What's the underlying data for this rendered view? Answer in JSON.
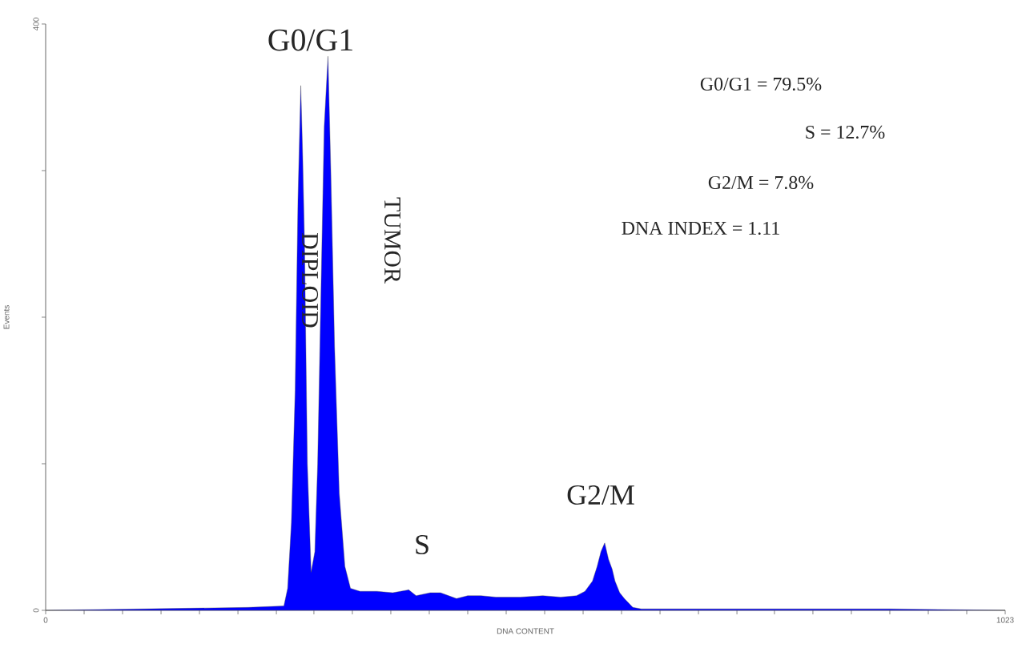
{
  "chart_data": {
    "type": "area",
    "xlabel": "DNA CONTENT",
    "ylabel": "Events",
    "x": [
      0,
      216,
      254,
      258,
      262,
      266,
      269,
      272,
      274,
      276,
      279,
      283,
      287,
      290,
      293,
      297,
      301,
      304,
      308,
      313,
      319,
      325,
      335,
      353,
      370,
      387,
      395,
      410,
      421,
      438,
      450,
      464,
      480,
      506,
      530,
      549,
      566,
      575,
      583,
      588,
      592,
      596,
      600,
      604,
      607,
      612,
      617,
      626,
      635,
      700,
      800,
      900,
      1023
    ],
    "series": [
      {
        "color": "#0000ff",
        "values": [
          0,
          2,
          3,
          15,
          60,
          150,
          280,
          358,
          310,
          250,
          100,
          26,
          40,
          100,
          200,
          330,
          378,
          300,
          180,
          80,
          30,
          15,
          13,
          13,
          12,
          14,
          10,
          12,
          12,
          8,
          10,
          10,
          9,
          9,
          10,
          9,
          10,
          13,
          20,
          30,
          40,
          46,
          35,
          28,
          20,
          12,
          8,
          2,
          1,
          1,
          1,
          1,
          0
        ]
      }
    ],
    "xlim": [
      0,
      1023
    ],
    "ylim": [
      0,
      400
    ],
    "xticks": [
      0,
      {
        "value": 41,
        "label": null
      },
      {
        "value": 82,
        "label": null
      },
      {
        "value": 123,
        "label": null
      },
      {
        "value": 164,
        "label": null
      },
      {
        "value": 205,
        "label": null
      },
      {
        "value": 246,
        "label": null
      },
      {
        "value": 286,
        "label": null
      },
      {
        "value": 327,
        "label": null
      },
      {
        "value": 368,
        "label": null
      },
      {
        "value": 409,
        "label": null
      },
      {
        "value": 450,
        "label": null
      },
      {
        "value": 491,
        "label": null
      },
      {
        "value": 532,
        "label": null
      },
      {
        "value": 573,
        "label": null
      },
      {
        "value": 614,
        "label": null
      },
      {
        "value": 655,
        "label": null
      },
      {
        "value": 696,
        "label": null
      },
      {
        "value": 737,
        "label": null
      },
      {
        "value": 777,
        "label": null
      },
      {
        "value": 818,
        "label": null
      },
      {
        "value": 859,
        "label": null
      },
      {
        "value": 900,
        "label": null
      },
      {
        "value": 941,
        "label": null
      },
      {
        "value": 982,
        "label": null
      },
      1023
    ],
    "yticks": [
      0,
      {
        "value": 100,
        "label": null
      },
      {
        "value": 200,
        "label": null
      },
      {
        "value": 300,
        "label": null
      },
      400
    ],
    "annotations": [
      "G0/G1",
      "DIPLOID",
      "TUMOR",
      "S",
      "G2/M",
      "G0/G1 = 79.5%",
      "S = 12.7%",
      "G2/M = 7.8%",
      "DNA INDEX = 1.11"
    ]
  }
}
